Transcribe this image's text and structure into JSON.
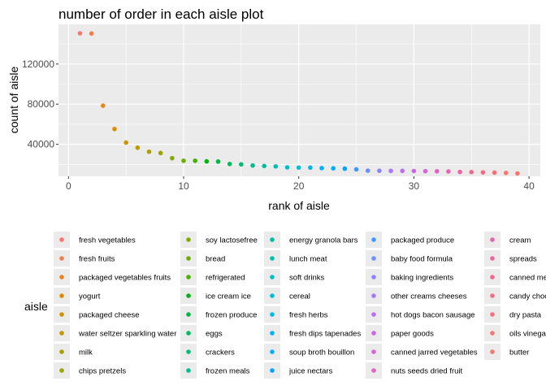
{
  "chart_data": {
    "type": "scatter",
    "title": "number of order in each aisle plot",
    "xlabel": "rank of aisle",
    "ylabel": "count of aisle",
    "xlim": [
      0,
      40
    ],
    "ylim": [
      0,
      150000
    ],
    "x_ticks": [
      0,
      10,
      20,
      30,
      40
    ],
    "x_tick_labels": [
      "0",
      "10",
      "20",
      "30",
      "40"
    ],
    "y_ticks": [
      40000,
      80000,
      120000
    ],
    "y_tick_labels": [
      "40000",
      "80000",
      "120000"
    ],
    "grid": true,
    "legend_title": "aisle",
    "legend_position": "bottom",
    "points": [
      {
        "rank": 1,
        "count": 150600,
        "aisle": "fresh vegetables",
        "color": "#F8766D"
      },
      {
        "rank": 2,
        "count": 150450,
        "aisle": "fresh fruits",
        "color": "#F07E4F"
      },
      {
        "rank": 3,
        "count": 78500,
        "aisle": "packaged vegetables fruits",
        "color": "#E6861C"
      },
      {
        "rank": 4,
        "count": 55240,
        "aisle": "yogurt",
        "color": "#D98D00"
      },
      {
        "rank": 5,
        "count": 41700,
        "aisle": "packaged cheese",
        "color": "#CB9400"
      },
      {
        "rank": 6,
        "count": 36600,
        "aisle": "water seltzer sparkling water",
        "color": "#BC9A00"
      },
      {
        "rank": 7,
        "count": 32600,
        "aisle": "milk",
        "color": "#ABA000"
      },
      {
        "rank": 8,
        "count": 31300,
        "aisle": "chips pretzels",
        "color": "#98A600"
      },
      {
        "rank": 9,
        "count": 26200,
        "aisle": "soy lactosefree",
        "color": "#82AB00"
      },
      {
        "rank": 10,
        "count": 23600,
        "aisle": "bread",
        "color": "#68AF00"
      },
      {
        "rank": 11,
        "count": 23600,
        "aisle": "refrigerated",
        "color": "#43B300"
      },
      {
        "rank": 12,
        "count": 23000,
        "aisle": "ice cream ice",
        "color": "#00B60B"
      },
      {
        "rank": 13,
        "count": 22800,
        "aisle": "frozen produce",
        "color": "#00B840"
      },
      {
        "rank": 14,
        "count": 20400,
        "aisle": "eggs",
        "color": "#00BA5C"
      },
      {
        "rank": 15,
        "count": 20000,
        "aisle": "crackers",
        "color": "#00BC75"
      },
      {
        "rank": 16,
        "count": 18900,
        "aisle": "frozen meals",
        "color": "#00BE8C"
      },
      {
        "rank": 17,
        "count": 18400,
        "aisle": "energy granola bars",
        "color": "#00BFA1"
      },
      {
        "rank": 18,
        "count": 18000,
        "aisle": "lunch meat",
        "color": "#00C0B5"
      },
      {
        "rank": 19,
        "count": 17000,
        "aisle": "soft drinks",
        "color": "#00BFC7"
      },
      {
        "rank": 20,
        "count": 16800,
        "aisle": "cereal",
        "color": "#00BDD8"
      },
      {
        "rank": 21,
        "count": 16800,
        "aisle": "fresh herbs",
        "color": "#00B9E7"
      },
      {
        "rank": 22,
        "count": 16300,
        "aisle": "fresh dips tapenades",
        "color": "#00B4F4"
      },
      {
        "rank": 23,
        "count": 16100,
        "aisle": "soup broth bouillon",
        "color": "#00ADFE"
      },
      {
        "rank": 24,
        "count": 15700,
        "aisle": "juice nectars",
        "color": "#00A4FF"
      },
      {
        "rank": 25,
        "count": 15000,
        "aisle": "packaged produce",
        "color": "#3B99FF"
      },
      {
        "rank": 26,
        "count": 13700,
        "aisle": "baby food formula",
        "color": "#6E8EFF"
      },
      {
        "rank": 27,
        "count": 13600,
        "aisle": "baking ingredients",
        "color": "#8F82FF"
      },
      {
        "rank": 28,
        "count": 13500,
        "aisle": "other creams cheeses",
        "color": "#A877F8"
      },
      {
        "rank": 29,
        "count": 13500,
        "aisle": "hot dogs bacon sausage",
        "color": "#BC6EEE"
      },
      {
        "rank": 30,
        "count": 13400,
        "aisle": "paper goods",
        "color": "#CB67E2"
      },
      {
        "rank": 31,
        "count": 13200,
        "aisle": "canned jarred vegetables",
        "color": "#D863D4"
      },
      {
        "rank": 32,
        "count": 13100,
        "aisle": "nuts seeds dried fruit",
        "color": "#E262C4"
      },
      {
        "rank": 33,
        "count": 12900,
        "aisle": "cream",
        "color": "#EA62B4"
      },
      {
        "rank": 34,
        "count": 12400,
        "aisle": "spreads",
        "color": "#EF63A3"
      },
      {
        "rank": 35,
        "count": 12300,
        "aisle": "canned meal",
        "color": "#F46692"
      },
      {
        "rank": 36,
        "count": 12000,
        "aisle": "candy chocolate",
        "color": "#F76A81"
      },
      {
        "rank": 37,
        "count": 11800,
        "aisle": "dry pasta",
        "color": "#F86E77"
      },
      {
        "rank": 38,
        "count": 11500,
        "aisle": "oils vinegars",
        "color": "#F8766D"
      },
      {
        "rank": 39,
        "count": 11000,
        "aisle": "butter",
        "color": "#F8766D"
      }
    ],
    "legend_columns": [
      [
        "fresh vegetables",
        "fresh fruits",
        "packaged vegetables fruits",
        "yogurt",
        "packaged cheese",
        "water seltzer sparkling water",
        "milk",
        "chips pretzels"
      ],
      [
        "soy lactosefree",
        "bread",
        "refrigerated",
        "ice cream ice",
        "frozen produce",
        "eggs",
        "crackers",
        "frozen meals"
      ],
      [
        "energy granola bars",
        "lunch meat",
        "soft drinks",
        "cereal",
        "fresh herbs",
        "fresh dips tapenades",
        "soup broth bouillon",
        "juice nectars"
      ],
      [
        "packaged produce",
        "baby food formula",
        "baking ingredients",
        "other creams cheeses",
        "hot dogs bacon sausage",
        "paper goods",
        "canned jarred vegetables",
        "nuts seeds dried fruit"
      ],
      [
        "cream",
        "spreads",
        "canned meal",
        "candy chocolate",
        "dry pasta",
        "oils vinegars",
        "butter"
      ]
    ],
    "legend_visible_labels": {
      "canned meal": "canned mea",
      "candy chocolate": "candy choc",
      "oils vinegars": "oils vinegar"
    }
  }
}
